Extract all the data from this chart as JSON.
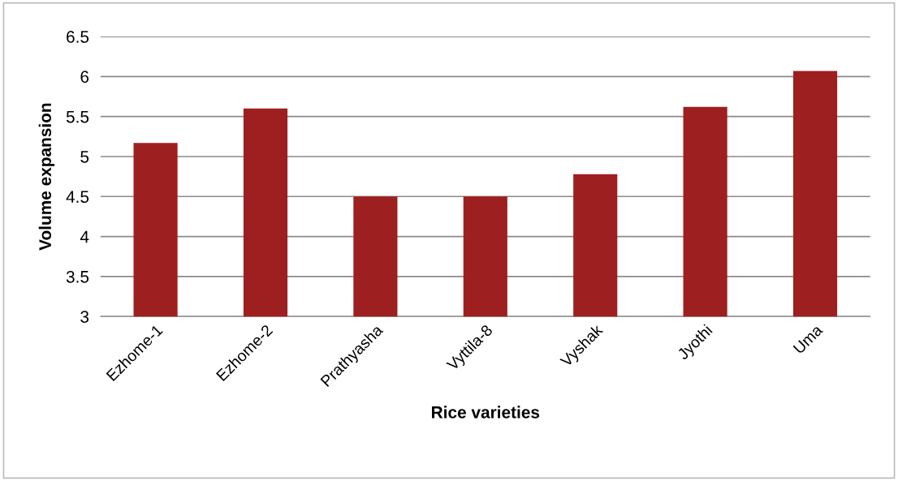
{
  "chart_data": {
    "type": "bar",
    "xlabel": "Rice varieties",
    "ylabel": "Volume expansion",
    "categories": [
      "Ezhome-1",
      "Ezhome-2",
      "Prathyasha",
      "Vyttila-8",
      "Vyshak",
      "Jyothi",
      "Uma"
    ],
    "values": [
      5.17,
      5.6,
      4.5,
      4.5,
      4.78,
      5.62,
      6.07
    ],
    "color": "#9e1f1f",
    "ylim": [
      3,
      6.5
    ],
    "yticks": [
      3,
      3.5,
      4,
      4.5,
      5,
      5.5,
      6,
      6.5
    ],
    "grid": "y"
  }
}
